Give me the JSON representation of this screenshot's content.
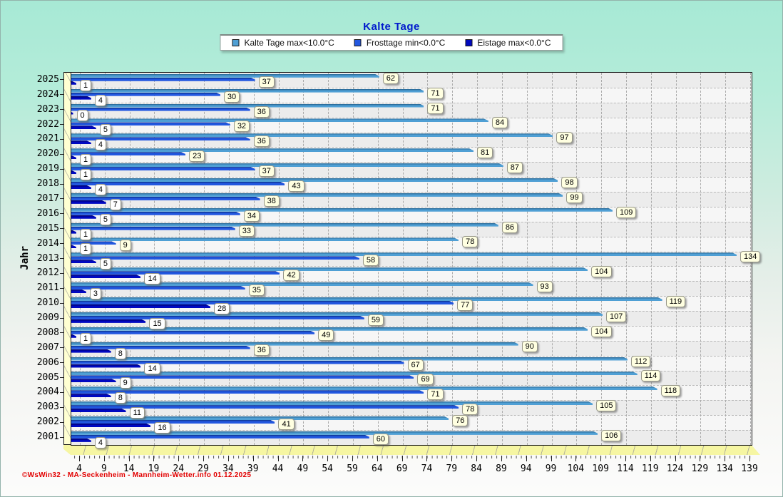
{
  "title": "Kalte Tage",
  "ylabel": "Jahr",
  "footer": "©WsWin32 - MA-Seckenheim - Mannheim-Wetter.info  01.12.2025",
  "colors": {
    "kalte_face": "#4f9fd4",
    "kalte_top": "#2d6f9e",
    "frost_face": "#2257e0",
    "frost_top": "#103a9e",
    "eis_face": "#0008c0",
    "eis_top": "#000070",
    "label_box_cream": "#ffffe1",
    "label_box_white": "#ffffff",
    "title_blue": "#0018cc",
    "footer_red": "#e20000",
    "plot_bg": "#ececec",
    "wall_yellow": "#ffffd2",
    "floor_yellow": "#f6f6a2"
  },
  "legend": [
    {
      "label": "Kalte Tage max<10.0°C",
      "color": "#4f9fd4"
    },
    {
      "label": "Frosttage min<0.0°C",
      "color": "#2257e0"
    },
    {
      "label": "Eistage max<0.0°C",
      "color": "#0008c0"
    }
  ],
  "chart_data": {
    "type": "bar",
    "orientation": "horizontal",
    "title": "Kalte Tage",
    "ylabel": "Jahr",
    "grid": true,
    "legend_position": "top",
    "categories": [
      2025,
      2024,
      2023,
      2022,
      2021,
      2020,
      2019,
      2018,
      2017,
      2016,
      2015,
      2014,
      2013,
      2012,
      2011,
      2010,
      2009,
      2008,
      2007,
      2006,
      2005,
      2004,
      2003,
      2002,
      2001
    ],
    "series": [
      {
        "name": "Kalte Tage max<10.0°C",
        "values": [
          62,
          71,
          71,
          84,
          97,
          81,
          87,
          98,
          99,
          109,
          86,
          78,
          134,
          104,
          93,
          119,
          107,
          104,
          90,
          112,
          114,
          118,
          105,
          76,
          106
        ]
      },
      {
        "name": "Frosttage min<0.0°C",
        "values": [
          37,
          30,
          36,
          32,
          36,
          23,
          37,
          43,
          38,
          34,
          33,
          9,
          58,
          42,
          35,
          77,
          59,
          49,
          36,
          67,
          69,
          71,
          78,
          41,
          60
        ]
      },
      {
        "name": "Eistage max<0.0°C",
        "values": [
          1,
          4,
          0,
          5,
          4,
          1,
          1,
          4,
          7,
          5,
          1,
          1,
          5,
          14,
          3,
          28,
          15,
          1,
          8,
          14,
          9,
          8,
          11,
          16,
          4
        ]
      }
    ],
    "x_ticks": [
      4,
      9,
      14,
      19,
      24,
      29,
      34,
      39,
      44,
      49,
      54,
      59,
      64,
      69,
      74,
      79,
      84,
      89,
      94,
      99,
      104,
      109,
      114,
      119,
      124,
      129,
      134,
      139
    ],
    "xlim": [
      0,
      139
    ]
  }
}
